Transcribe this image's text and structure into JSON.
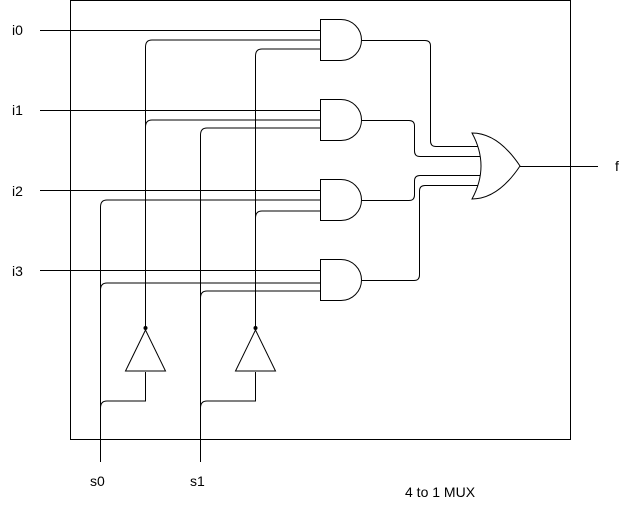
{
  "inputs": {
    "i0": "i0",
    "i1": "i1",
    "i2": "i2",
    "i3": "i3",
    "s0": "s0",
    "s1": "s1"
  },
  "output": {
    "f": "f"
  },
  "caption": "4 to 1 MUX",
  "colors": {
    "stroke": "#000000",
    "background": "#ffffff"
  }
}
